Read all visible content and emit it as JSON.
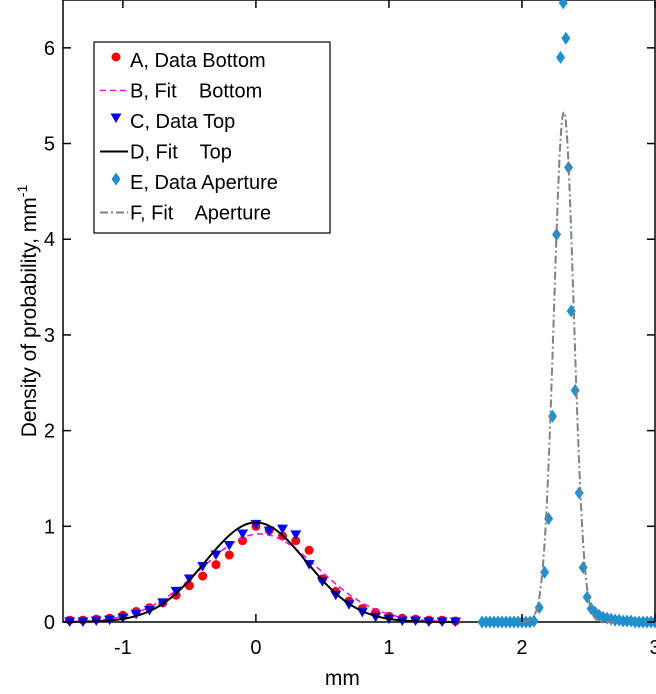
{
  "chart_data": {
    "type": "scatter",
    "xlabel": "mm",
    "ylabel": "Density of probability, mm",
    "ylabel_superscript": "-1",
    "xlim": [
      -1.45,
      3.0
    ],
    "ylim": [
      0,
      6.5
    ],
    "x_ticks": [
      -1,
      0,
      1,
      2,
      3
    ],
    "y_ticks": [
      0,
      1,
      2,
      3,
      4,
      5,
      6
    ],
    "x_tick_labels": [
      "-1",
      "0",
      "1",
      "2",
      "3"
    ],
    "y_tick_labels": [
      "0",
      "1",
      "2",
      "3",
      "4",
      "5",
      "6"
    ],
    "grid": false,
    "legend_position": "top-left",
    "series": [
      {
        "name": "A, Data Bottom",
        "kind": "points",
        "marker": "circle",
        "color": "#ff0000",
        "x": [
          -1.4,
          -1.3,
          -1.2,
          -1.1,
          -1.0,
          -0.9,
          -0.8,
          -0.7,
          -0.6,
          -0.5,
          -0.4,
          -0.3,
          -0.2,
          -0.1,
          0.0,
          0.1,
          0.2,
          0.3,
          0.4,
          0.5,
          0.6,
          0.7,
          0.8,
          0.9,
          1.0,
          1.1,
          1.2,
          1.3,
          1.4,
          1.5
        ],
        "y": [
          0.02,
          0.02,
          0.03,
          0.04,
          0.07,
          0.11,
          0.15,
          0.2,
          0.28,
          0.38,
          0.48,
          0.6,
          0.7,
          0.85,
          1.0,
          0.96,
          0.9,
          0.85,
          0.75,
          0.45,
          0.32,
          0.22,
          0.14,
          0.1,
          0.06,
          0.04,
          0.03,
          0.02,
          0.02,
          0.01
        ]
      },
      {
        "name": "B, Fit    Bottom",
        "kind": "line",
        "mu": 0.03,
        "sigma": 0.44,
        "amplitude": 0.92,
        "xrange": [
          -1.45,
          1.5
        ],
        "color": "#ff00ff",
        "dash": "6,4",
        "width": 1.5
      },
      {
        "name": "C, Data Top",
        "kind": "points",
        "marker": "triangle-down",
        "color": "#0000ff",
        "x": [
          -1.4,
          -1.3,
          -1.2,
          -1.1,
          -1.0,
          -0.9,
          -0.8,
          -0.7,
          -0.6,
          -0.5,
          -0.4,
          -0.3,
          -0.2,
          -0.1,
          0.0,
          0.1,
          0.2,
          0.3,
          0.4,
          0.5,
          0.6,
          0.7,
          0.8,
          0.9,
          1.0,
          1.1,
          1.2,
          1.3,
          1.4,
          1.5
        ],
        "y": [
          0.0,
          0.0,
          0.01,
          0.02,
          0.04,
          0.08,
          0.12,
          0.2,
          0.32,
          0.45,
          0.58,
          0.7,
          0.8,
          0.92,
          1.02,
          0.95,
          0.97,
          0.91,
          0.6,
          0.42,
          0.28,
          0.18,
          0.1,
          0.05,
          0.03,
          0.01,
          0.01,
          0.0,
          0.0,
          0.0
        ]
      },
      {
        "name": "D, Fit    Top",
        "kind": "line",
        "mu": 0.0,
        "sigma": 0.38,
        "amplitude": 1.04,
        "xrange": [
          -1.45,
          1.5
        ],
        "color": "#000000",
        "dash": "",
        "width": 2
      },
      {
        "name": "E, Data Aperture",
        "kind": "points",
        "marker": "diamond",
        "color": "#1f8fcf",
        "x": [
          1.7,
          1.73,
          1.76,
          1.79,
          1.82,
          1.85,
          1.88,
          1.91,
          1.94,
          1.97,
          2.0,
          2.03,
          2.06,
          2.09,
          2.13,
          2.17,
          2.2,
          2.23,
          2.26,
          2.29,
          2.31,
          2.33,
          2.35,
          2.37,
          2.4,
          2.43,
          2.46,
          2.49,
          2.52,
          2.55,
          2.58,
          2.61,
          2.64,
          2.67,
          2.7,
          2.73,
          2.76,
          2.79,
          2.82,
          2.85,
          2.88,
          2.91,
          2.94,
          2.97,
          3.0
        ],
        "y": [
          0,
          0,
          0,
          0,
          0,
          0,
          0,
          0,
          0,
          0,
          0,
          0,
          0,
          0.01,
          0.15,
          0.52,
          1.08,
          2.15,
          4.05,
          5.9,
          6.47,
          6.1,
          4.75,
          3.25,
          2.42,
          1.35,
          0.57,
          0.26,
          0.14,
          0.1,
          0.07,
          0.05,
          0.04,
          0.03,
          0.02,
          0.02,
          0.01,
          0.01,
          0.01,
          0,
          0,
          0,
          0,
          0,
          0
        ]
      },
      {
        "name": "F, Fit    Aperture",
        "kind": "line",
        "mu": 2.315,
        "sigma": 0.075,
        "amplitude": 5.33,
        "xrange": [
          2.0,
          2.7
        ],
        "color": "#808080",
        "dash": "8,3,2,3",
        "width": 2
      }
    ]
  }
}
